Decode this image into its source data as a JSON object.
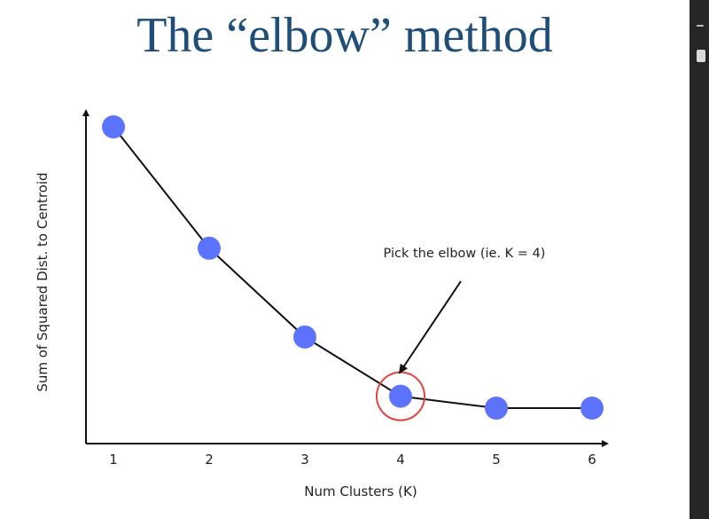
{
  "slide": {
    "title": "The “elbow” method"
  },
  "colors": {
    "title": "#1f4e79",
    "point": "#5b73ff",
    "line": "#111111",
    "highlight": "#e0443e",
    "side_panel": "#262626"
  },
  "chart_data": {
    "type": "line",
    "title": "",
    "xlabel": "Num Clusters (K)",
    "ylabel": "Sum of Squared Dist. to Centroid",
    "x": [
      1,
      2,
      3,
      4,
      5,
      6
    ],
    "x_tick_labels": [
      "1",
      "2",
      "3",
      "4",
      "5",
      "6"
    ],
    "series": [
      {
        "values": [
          10.0,
          5.9,
          2.9,
          0.9,
          0.5,
          0.5
        ]
      }
    ],
    "xlim": [
      0.7,
      6.5
    ],
    "ylim": [
      -0.5,
      10.5
    ],
    "grid": false,
    "annotations": [
      {
        "text": "Pick the elbow (ie. K = 4)",
        "points_to_x": 4,
        "points_to_y": 0.9,
        "highlight": "circle"
      }
    ]
  }
}
